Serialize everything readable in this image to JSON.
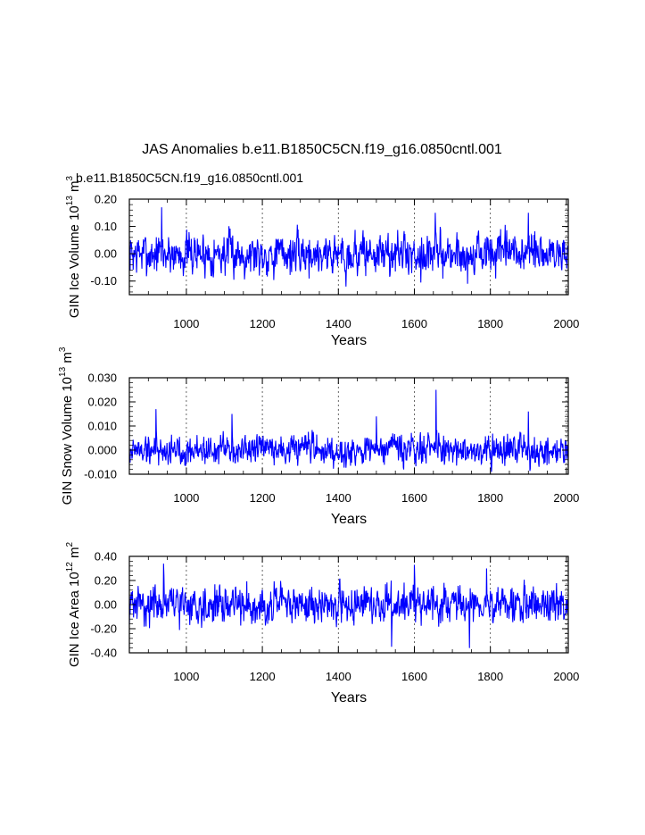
{
  "figure": {
    "title": "JAS Anomalies b.e11.B1850C5CN.f19_g16.0850cntl.001",
    "case_label": "b.e11.B1850C5CN.f19_g16.0850cntl.001",
    "case_label_color": "#0000ff",
    "line_color": "#0000ff",
    "grid_color": "#000000"
  },
  "chart_data": [
    {
      "type": "line",
      "id": "ice-volume",
      "ylabel": "GIN Ice Volume 10",
      "ylabel_exp": "13",
      "ylabel_unit": "m",
      "ylabel_unit_exp": "3",
      "xlabel": "Years",
      "xlim": [
        850,
        2005
      ],
      "ylim": [
        -0.15,
        0.2
      ],
      "xticks": [
        1000,
        1200,
        1400,
        1600,
        1800,
        2000
      ],
      "xtick_labels": [
        "1000",
        "1200",
        "1400",
        "1600",
        "1800",
        "2000"
      ],
      "yticks": [
        -0.1,
        0.0,
        0.1,
        0.2
      ],
      "ytick_labels": [
        "-0.10",
        "0.00",
        "0.10",
        "0.20"
      ],
      "grid": "x-dashed",
      "series": [
        {
          "amplitude": 0.055,
          "seed": 7,
          "peaks": [
            [
              935,
              0.17
            ],
            [
              1420,
              -0.12
            ],
            [
              1740,
              -0.11
            ],
            [
              1900,
              0.15
            ],
            [
              1655,
              0.15
            ]
          ]
        }
      ]
    },
    {
      "type": "line",
      "id": "snow-volume",
      "ylabel": "GIN Snow Volume 10",
      "ylabel_exp": "13",
      "ylabel_unit": "m",
      "ylabel_unit_exp": "3",
      "xlabel": "Years",
      "xlim": [
        850,
        2005
      ],
      "ylim": [
        -0.01,
        0.03
      ],
      "xticks": [
        1000,
        1200,
        1400,
        1600,
        1800,
        2000
      ],
      "xtick_labels": [
        "1000",
        "1200",
        "1400",
        "1600",
        "1800",
        "2000"
      ],
      "yticks": [
        -0.01,
        0.0,
        0.01,
        0.02,
        0.03
      ],
      "ytick_labels": [
        "-0.010",
        "0.000",
        "0.010",
        "0.020",
        "0.030"
      ],
      "grid": "x-dashed",
      "series": [
        {
          "amplitude": 0.0045,
          "seed": 19,
          "peaks": [
            [
              1657,
              0.025
            ],
            [
              920,
              0.017
            ],
            [
              1900,
              0.016
            ],
            [
              1120,
              0.015
            ],
            [
              1500,
              0.014
            ]
          ]
        }
      ]
    },
    {
      "type": "line",
      "id": "ice-area",
      "ylabel": "GIN Ice Area 10",
      "ylabel_exp": "12",
      "ylabel_unit": "m",
      "ylabel_unit_exp": "2",
      "xlabel": "Years",
      "xlim": [
        850,
        2005
      ],
      "ylim": [
        -0.4,
        0.4
      ],
      "xticks": [
        1000,
        1200,
        1400,
        1600,
        1800,
        2000
      ],
      "xtick_labels": [
        "1000",
        "1200",
        "1400",
        "1600",
        "1800",
        "2000"
      ],
      "yticks": [
        -0.4,
        -0.2,
        0.0,
        0.2,
        0.4
      ],
      "ytick_labels": [
        "-0.40",
        "-0.20",
        "0.00",
        "0.20",
        "0.40"
      ],
      "grid": "x-dashed",
      "series": [
        {
          "amplitude": 0.11,
          "seed": 31,
          "peaks": [
            [
              940,
              0.34
            ],
            [
              1540,
              -0.35
            ],
            [
              1745,
              -0.36
            ],
            [
              1600,
              0.33
            ],
            [
              1790,
              0.3
            ]
          ]
        }
      ]
    }
  ]
}
